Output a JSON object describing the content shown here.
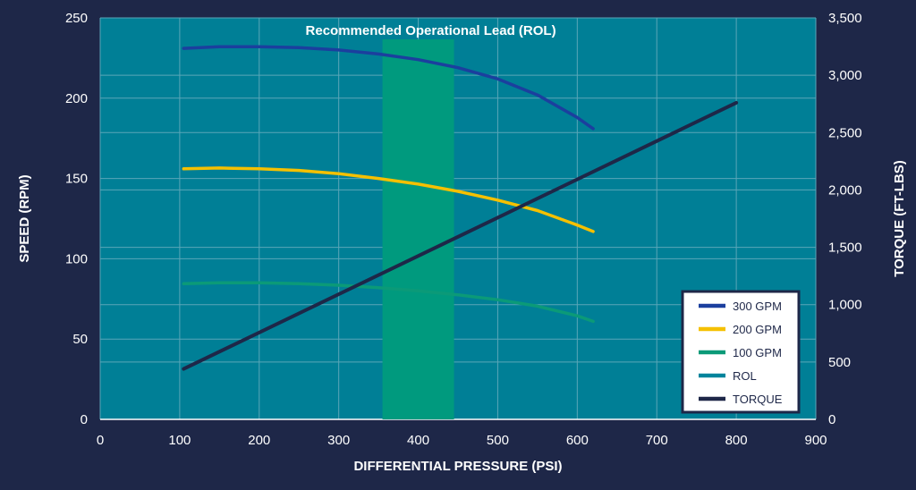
{
  "chart_data": {
    "type": "line",
    "title": "",
    "rol_label": "Recommended Operational Lead (ROL)",
    "xlabel": "DIFFERENTIAL PRESSURE (PSI)",
    "ylabel_left": "SPEED (RPM)",
    "ylabel_right": "TORQUE (FT-LBS)",
    "xlim": [
      0,
      900
    ],
    "ylim_left": [
      0,
      250
    ],
    "ylim_right": [
      0,
      3500
    ],
    "x_ticks": [
      "0",
      "100",
      "200",
      "300",
      "400",
      "500",
      "600",
      "700",
      "800",
      "900"
    ],
    "y_left_ticks": [
      "0",
      "50",
      "100",
      "150",
      "200",
      "250"
    ],
    "y_right_ticks": [
      "0",
      "500",
      "1,000",
      "1,500",
      "2,000",
      "2,500",
      "3,000",
      "3,500"
    ],
    "grid": true,
    "legend_position": "bottom-right",
    "rol_range": [
      355,
      445
    ],
    "colors": {
      "background": "#1e2748",
      "plot_area": "#007f96",
      "grid": "#5aa6b8",
      "rol": "#009a7e"
    },
    "series": [
      {
        "name": "300 GPM",
        "axis": "left",
        "color": "#1b3f9e",
        "x": [
          105,
          150,
          200,
          250,
          300,
          350,
          400,
          450,
          500,
          550,
          600,
          620
        ],
        "y": [
          231,
          232,
          232,
          231.5,
          230,
          227.5,
          224,
          219,
          212,
          202,
          188,
          181
        ]
      },
      {
        "name": "200 GPM",
        "axis": "left",
        "color": "#f5c000",
        "x": [
          105,
          150,
          200,
          250,
          300,
          350,
          400,
          450,
          500,
          550,
          600,
          620
        ],
        "y": [
          156,
          156.5,
          156,
          155,
          153,
          150,
          146.5,
          142,
          136.5,
          130,
          121,
          117
        ]
      },
      {
        "name": "100 GPM",
        "axis": "left",
        "color": "#0b9a78",
        "x": [
          105,
          150,
          200,
          250,
          300,
          350,
          400,
          450,
          500,
          550,
          600,
          620
        ],
        "y": [
          84.5,
          85,
          85,
          84.5,
          83.5,
          82,
          80,
          77.5,
          74.5,
          70.5,
          64.5,
          61
        ]
      },
      {
        "name": "ROL",
        "axis": "none",
        "color": "#00849c",
        "x": [],
        "y": []
      },
      {
        "name": "TORQUE",
        "axis": "right",
        "color": "#1e2748",
        "x": [
          105,
          800
        ],
        "y": [
          440,
          2760
        ]
      }
    ]
  }
}
